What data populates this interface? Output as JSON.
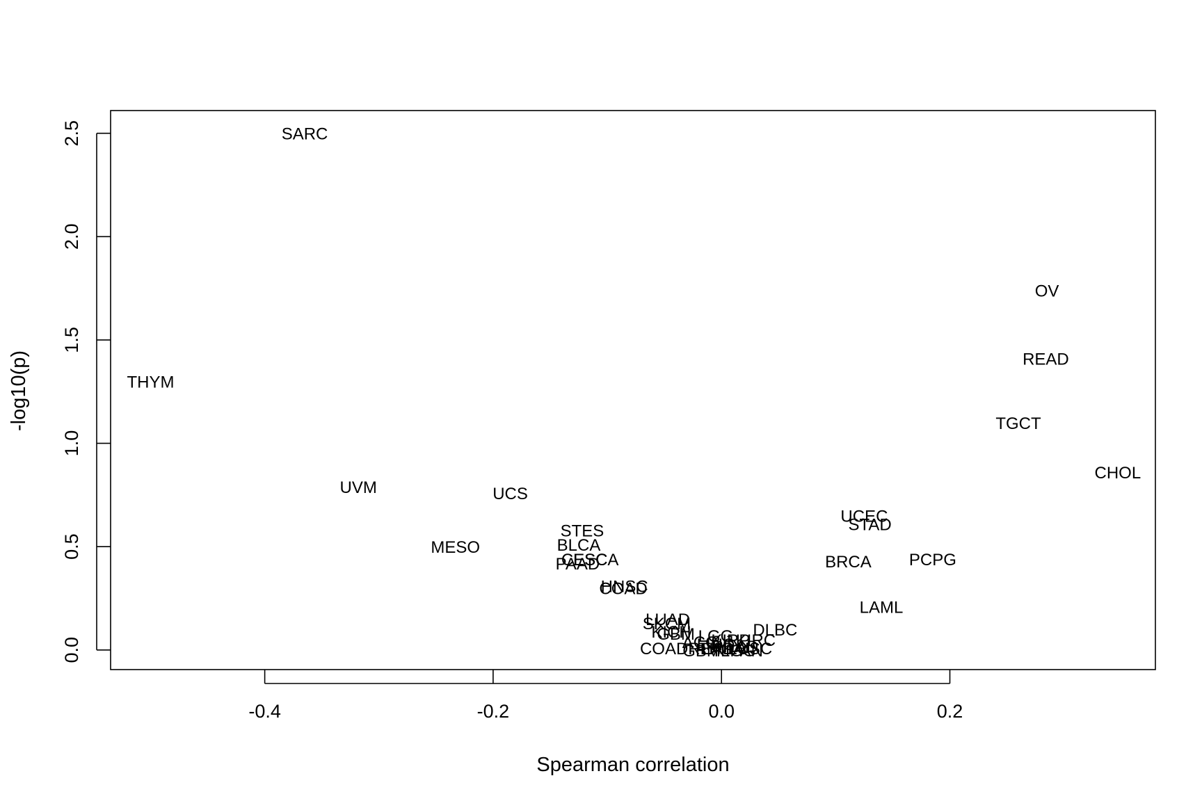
{
  "chart_data": {
    "type": "scatter",
    "title": "",
    "xlabel": "Spearman correlation",
    "ylabel": "-log10(p)",
    "xlim": [
      -0.535,
      0.38
    ],
    "ylim": [
      -0.095,
      2.61
    ],
    "x_ticks": [
      -0.4,
      -0.2,
      0.0,
      0.2
    ],
    "x_tick_labels": [
      "-0.4",
      "-0.2",
      "0.0",
      "0.2"
    ],
    "y_ticks": [
      0.0,
      0.5,
      1.0,
      1.5,
      2.0,
      2.5
    ],
    "y_tick_labels": [
      "0.0",
      "0.5",
      "1.0",
      "1.5",
      "2.0",
      "2.5"
    ],
    "grid": false,
    "legend": "none",
    "marker": "text-label",
    "points": [
      {
        "label": "SARC",
        "x": -0.365,
        "y": 2.5
      },
      {
        "label": "THYM",
        "x": -0.5,
        "y": 1.3
      },
      {
        "label": "OV",
        "x": 0.285,
        "y": 1.74
      },
      {
        "label": "READ",
        "x": 0.284,
        "y": 1.41
      },
      {
        "label": "TGCT",
        "x": 0.26,
        "y": 1.1
      },
      {
        "label": "CHOL",
        "x": 0.347,
        "y": 0.86
      },
      {
        "label": "UVM",
        "x": -0.318,
        "y": 0.79
      },
      {
        "label": "UCS",
        "x": -0.185,
        "y": 0.76
      },
      {
        "label": "MESO",
        "x": -0.233,
        "y": 0.5
      },
      {
        "label": "STES",
        "x": -0.122,
        "y": 0.58
      },
      {
        "label": "BLCA",
        "x": -0.125,
        "y": 0.51
      },
      {
        "label": "ESCA",
        "x": -0.11,
        "y": 0.44
      },
      {
        "label": "CESC",
        "x": -0.12,
        "y": 0.44
      },
      {
        "label": "PAAD",
        "x": -0.126,
        "y": 0.42
      },
      {
        "label": "HNSC",
        "x": -0.085,
        "y": 0.31
      },
      {
        "label": "COAD",
        "x": -0.086,
        "y": 0.3
      },
      {
        "label": "UCEC",
        "x": 0.125,
        "y": 0.65
      },
      {
        "label": "STAD",
        "x": 0.13,
        "y": 0.61
      },
      {
        "label": "BRCA",
        "x": 0.111,
        "y": 0.43
      },
      {
        "label": "PCPG",
        "x": 0.185,
        "y": 0.44
      },
      {
        "label": "LAML",
        "x": 0.14,
        "y": 0.21
      },
      {
        "label": "LUAD",
        "x": -0.047,
        "y": 0.15
      },
      {
        "label": "SKCM",
        "x": -0.048,
        "y": 0.13
      },
      {
        "label": "KICH",
        "x": -0.044,
        "y": 0.09
      },
      {
        "label": "GBM",
        "x": -0.04,
        "y": 0.08
      },
      {
        "label": "LGG",
        "x": -0.005,
        "y": 0.07
      },
      {
        "label": "DLBC",
        "x": 0.047,
        "y": 0.1
      },
      {
        "label": "KIRP",
        "x": 0.008,
        "y": 0.05
      },
      {
        "label": "KIRC",
        "x": 0.03,
        "y": 0.05
      },
      {
        "label": "ACC",
        "x": -0.019,
        "y": 0.04
      },
      {
        "label": "LIHC",
        "x": -0.005,
        "y": 0.03
      },
      {
        "label": "PRAD",
        "x": 0.012,
        "y": 0.02
      },
      {
        "label": "LUSC",
        "x": 0.025,
        "y": 0.01
      },
      {
        "label": "THCA",
        "x": 0.0,
        "y": 0.01
      },
      {
        "label": "COADREAD",
        "x": -0.03,
        "y": 0.01
      },
      {
        "label": "KIPAN",
        "x": 0.015,
        "y": 0.0
      },
      {
        "label": "GBMLGG",
        "x": -0.002,
        "y": 0.0
      }
    ]
  }
}
